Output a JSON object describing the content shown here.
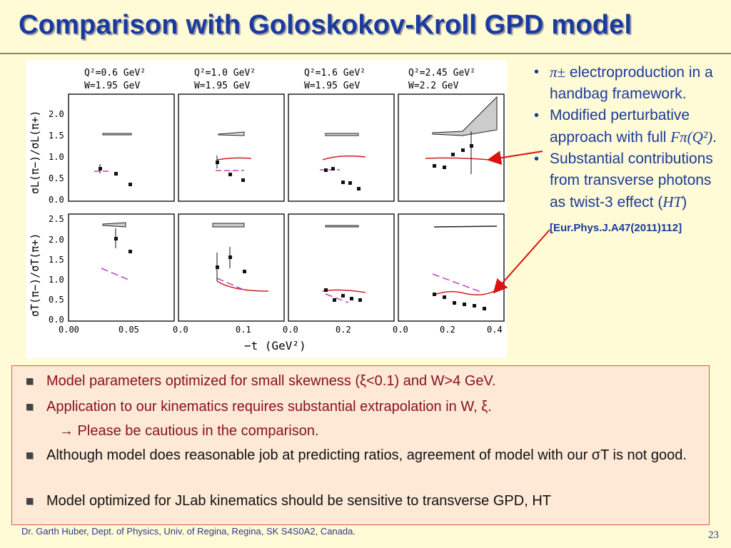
{
  "slide": {
    "title": "Comparison with Goloskokov-Kroll GPD model",
    "footer": "Dr. Garth Huber, Dept. of Physics, Univ. of Regina, Regina, SK S4S0A2, Canada.",
    "page_number": "23"
  },
  "right_bullets": [
    {
      "symbol": "π±",
      "text": " electroproduction in a handbag framework."
    },
    {
      "text_before": "Modified perturbative approach with full ",
      "math": "Fπ(Q²)",
      "text_after": "."
    },
    {
      "text": "Substantial contributions from transverse photons as twist-3 effect (",
      "math": "HT",
      "text_after": ")"
    }
  ],
  "reference": "[Eur.Phys.J.A47(2011)112]",
  "bottom_bullets": [
    "Model parameters optimized for small skewness (ξ<0.1) and W>4 GeV.",
    "Application to our kinematics requires substantial extrapolation in W, ξ.",
    "→ Please be cautious in the comparison.",
    "Although model does reasonable job at predicting ratios, agreement of model with our σT is not good.",
    "Model optimized for JLab kinematics should be sensitive to transverse GPD, HT"
  ],
  "figure": {
    "x_axis_label": "−t  (GeV²)",
    "y_label_top": "σL(π−)/σL(π+)",
    "y_label_bottom": "σT(π−)/σT(π+)",
    "top_yticks": [
      "2.0",
      "1.5",
      "1.0",
      "0.5",
      "0.0"
    ],
    "bottom_yticks": [
      "2.5",
      "2.0",
      "1.5",
      "1.0",
      "0.5",
      "0.0"
    ],
    "panels": [
      {
        "q2": "Q²=0.6  GeV²",
        "w": "W=1.95  GeV",
        "xticks": [
          "0.00",
          "0.05"
        ]
      },
      {
        "q2": "Q²=1.0  GeV²",
        "w": "W=1.95  GeV",
        "xticks": [
          "0.0",
          "0.1"
        ]
      },
      {
        "q2": "Q²=1.6  GeV²",
        "w": "W=1.95  GeV",
        "xticks": [
          "0.0",
          "0.2"
        ]
      },
      {
        "q2": "Q²=2.45  GeV²",
        "w": "W=2.2  GeV",
        "xticks": [
          "0.0",
          "0.2",
          "0.4"
        ]
      }
    ]
  }
}
